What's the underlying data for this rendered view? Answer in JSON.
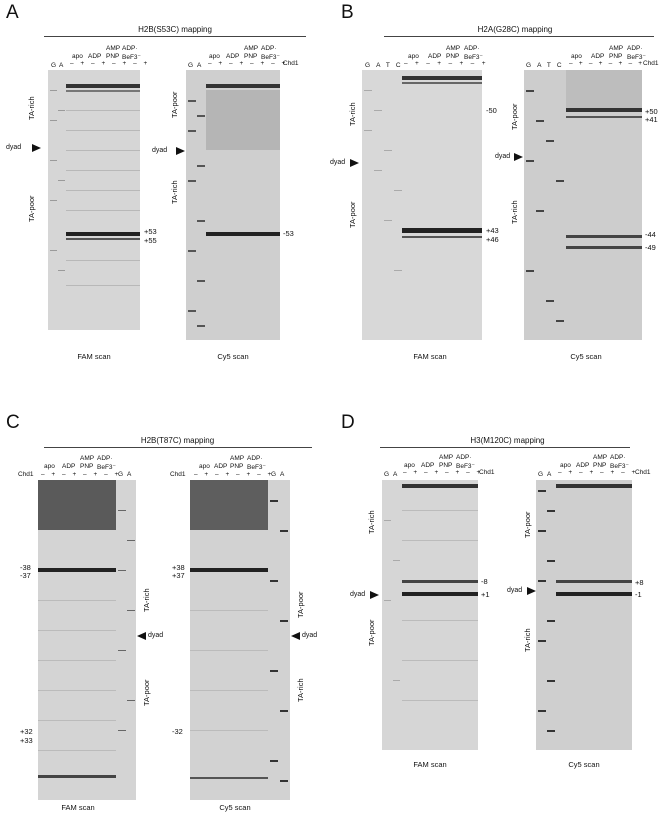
{
  "panels": {
    "A": {
      "letter": "A",
      "title": "H2B(S53C) mapping",
      "left_scan": "FAM scan",
      "right_scan": "Cy5 scan",
      "left_side_top": "TA-rich",
      "left_side_bottom": "TA-poor",
      "right_side_top": "TA-poor",
      "right_side_bottom": "TA-rich",
      "dyad": "dyad",
      "left_bands": [
        "+53",
        "+55"
      ],
      "right_bands": [
        "-53"
      ]
    },
    "B": {
      "letter": "B",
      "title": "H2A(G28C) mapping",
      "left_scan": "FAM scan",
      "right_scan": "Cy5 scan",
      "left_side_top": "TA-rich",
      "left_side_bottom": "TA-poor",
      "right_side_top": "TA-poor",
      "right_side_bottom": "TA-rich",
      "dyad": "dyad",
      "left_bands": [
        "-50",
        "+43",
        "+46"
      ],
      "right_bands": [
        "+50",
        "+41",
        "-44",
        "-49"
      ],
      "seq_lanes": [
        "G",
        "A",
        "T",
        "C"
      ]
    },
    "C": {
      "letter": "C",
      "title": "H2B(T87C) mapping",
      "left_scan": "FAM scan",
      "right_scan": "Cy5 scan",
      "left_side_top": "TA-rich",
      "left_side_bottom": "TA-poor",
      "right_side_top": "TA-poor",
      "right_side_bottom": "TA-rich",
      "dyad": "dyad",
      "left_bands": [
        "-38",
        "-37",
        "+32",
        "+33"
      ],
      "right_bands": [
        "+38",
        "+37",
        "-32"
      ]
    },
    "D": {
      "letter": "D",
      "title": "H3(M120C) mapping",
      "left_scan": "FAM scan",
      "right_scan": "Cy5 scan",
      "left_side_top": "TA-rich",
      "left_side_bottom": "TA-poor",
      "right_side_top": "TA-poor",
      "right_side_bottom": "TA-rich",
      "dyad": "dyad",
      "left_bands": [
        "-8",
        "+1"
      ],
      "right_bands": [
        "+8",
        "-1"
      ]
    }
  },
  "conditions": {
    "apo": "apo",
    "adp": "ADP",
    "amp": "AMP",
    "pnp": "PNP",
    "adp2": "ADP·",
    "befx": "BeF3⁻",
    "chd1": "Chd1",
    "signs": "– + – + – + – +",
    "lane_g": "G",
    "lane_a": "A"
  }
}
